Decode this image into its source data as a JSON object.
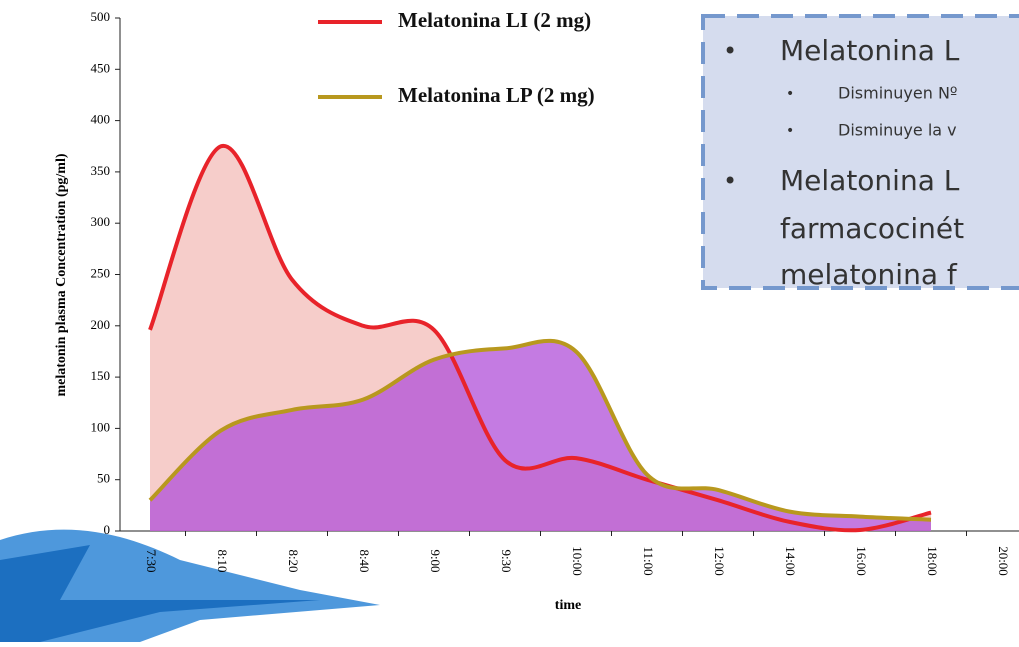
{
  "chart_data": {
    "type": "line",
    "y_label": "melatonin plasma Concentration (pg/ml)",
    "x_label": "time",
    "categories": [
      "7:30",
      "8:10",
      "8:20",
      "8:40",
      "9:00",
      "9:30",
      "10:00",
      "11:00",
      "12:00",
      "14:00",
      "16:00",
      "18:00",
      "20:00"
    ],
    "series": [
      {
        "name": "Melatonina LI (2 mg)",
        "color": "#e8232a",
        "fill": "#f2b8b4",
        "values": [
          196,
          375,
          245,
          200,
          196,
          69,
          71,
          50,
          30,
          9,
          1,
          18,
          null
        ]
      },
      {
        "name": "Melatonina LP (2 mg)",
        "color": "#b8981e",
        "fill": "#b04fd8",
        "values": [
          30,
          98,
          118,
          128,
          167,
          178,
          175,
          55,
          40,
          19,
          14,
          11,
          null
        ]
      }
    ],
    "ylim": [
      0,
      500
    ],
    "yticks": [
      0,
      50,
      100,
      150,
      200,
      250,
      300,
      350,
      400,
      450,
      500
    ],
    "annotations": [
      "Melatonina L",
      "Disminuyen Nº",
      "Disminuye la v",
      "Melatonina L",
      "farmacocinét",
      "melatonina f"
    ]
  }
}
